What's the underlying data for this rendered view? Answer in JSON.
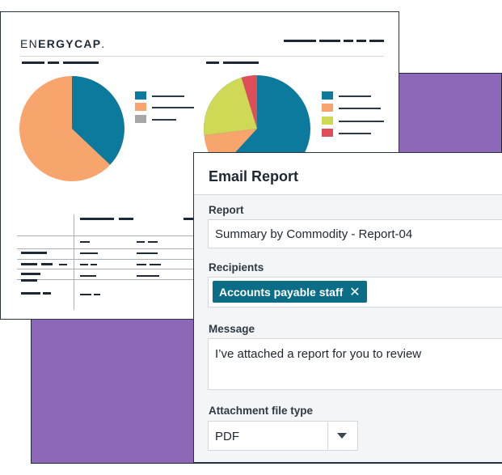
{
  "colors": {
    "purple_background": "#8e68b8",
    "pie_blue": "#0b7a9c",
    "pie_orange": "#f7a46d",
    "pie_gray": "#a6a6a6",
    "pie_green": "#cfd956",
    "pie_red": "#de4e58",
    "chip_teal": "#0b6e86"
  },
  "report_preview": {
    "logo_prefix": "EN",
    "logo_mid": "ERGYCAP",
    "logo_suffix": "."
  },
  "dialog": {
    "title": "Email Report",
    "report_label": "Report",
    "report_value": "Summary by Commodity - Report-04",
    "recipients_label": "Recipients",
    "recipient_chip": "Accounts payable staff",
    "recipient_remove_icon": "close-icon",
    "message_label": "Message",
    "message_value": "I’ve attached a report for you to review",
    "attachment_label": "Attachment file type",
    "attachment_value": "PDF",
    "attachment_dropdown_icon": "caret-down-icon"
  }
}
